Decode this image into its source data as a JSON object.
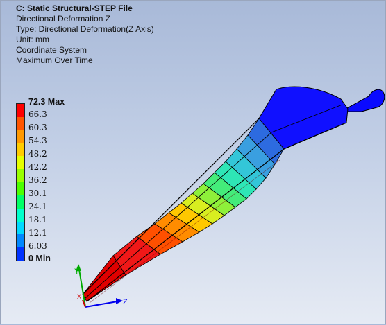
{
  "header": {
    "title": "C: Static Structural-STEP File",
    "lines": [
      "Directional Deformation Z",
      "Type: Directional Deformation(Z Axis)",
      "Unit: mm",
      "Coordinate System",
      "Maximum Over Time"
    ]
  },
  "legend": {
    "labels": [
      "72.3 Max",
      "66.3",
      "60.3",
      "54.3",
      "48.2",
      "42.2",
      "36.2",
      "30.1",
      "24.1",
      "18.1",
      "12.1",
      "6.03",
      "0 Min"
    ],
    "colors": [
      "#ff0000",
      "#ff5500",
      "#ff9900",
      "#ffcc00",
      "#e5ff00",
      "#99ff00",
      "#4cff00",
      "#00ff66",
      "#00ffcc",
      "#00d9ff",
      "#0088ff",
      "#0033ff"
    ]
  },
  "triad": {
    "x_label": "X",
    "y_label": "Y",
    "z_label": "Z"
  },
  "colors": {
    "max": "#ff0000",
    "min": "#0000ff",
    "triad_x": "#cc0000",
    "triad_y": "#00aa00",
    "triad_z": "#0000ee"
  }
}
